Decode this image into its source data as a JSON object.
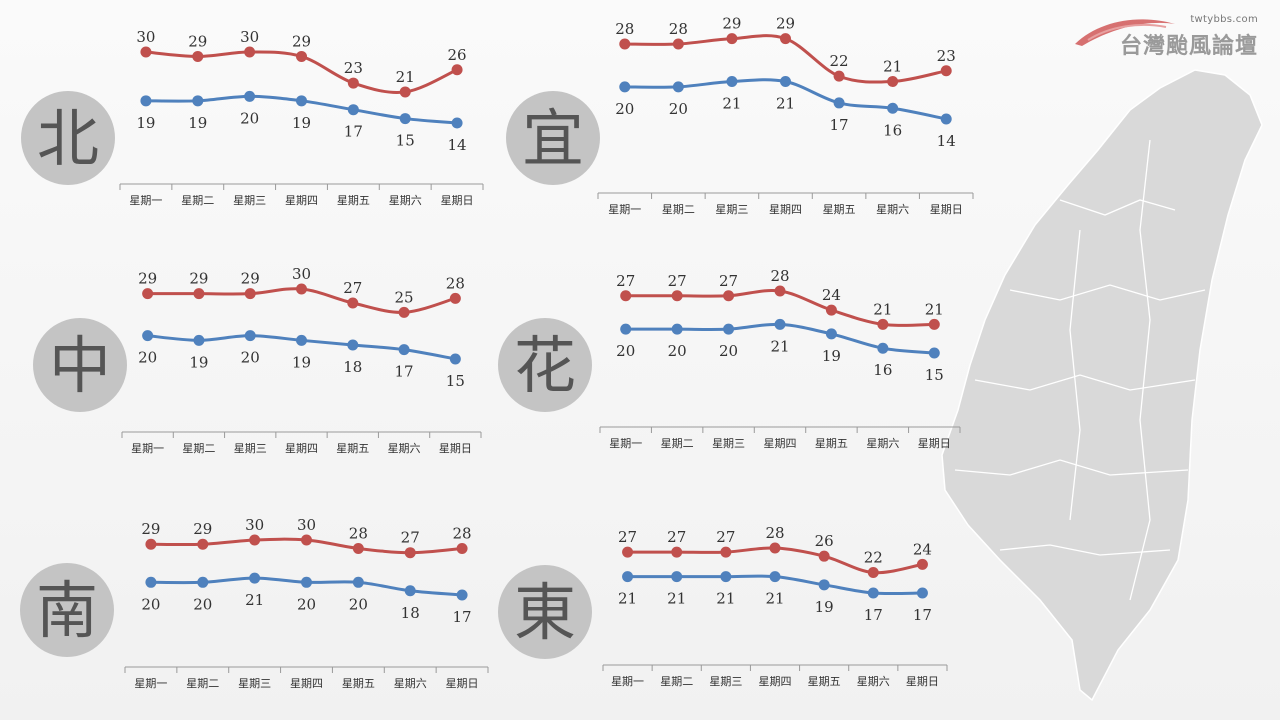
{
  "brand": {
    "url": "twtybbs.com",
    "name": "台灣颱風論壇"
  },
  "colors": {
    "high": "#c0504d",
    "low": "#4f81bd",
    "circle": "#c4c4c4",
    "region_text": "#555555",
    "axis": "#9a9a9a",
    "map": "#d9d9d9"
  },
  "chart_data": [
    {
      "type": "line",
      "region": "北",
      "categories": [
        "星期一",
        "星期二",
        "星期三",
        "星期四",
        "星期五",
        "星期六",
        "星期日"
      ],
      "series": [
        {
          "values": [
            30,
            29,
            30,
            29,
            23,
            21,
            26
          ]
        },
        {
          "values": [
            19,
            19,
            20,
            19,
            17,
            15,
            14
          ]
        }
      ]
    },
    {
      "type": "line",
      "region": "宜",
      "categories": [
        "星期一",
        "星期二",
        "星期三",
        "星期四",
        "星期五",
        "星期六",
        "星期日"
      ],
      "series": [
        {
          "values": [
            28,
            28,
            29,
            29,
            22,
            21,
            23
          ]
        },
        {
          "values": [
            20,
            20,
            21,
            21,
            17,
            16,
            14
          ]
        }
      ]
    },
    {
      "type": "line",
      "region": "中",
      "categories": [
        "星期一",
        "星期二",
        "星期三",
        "星期四",
        "星期五",
        "星期六",
        "星期日"
      ],
      "series": [
        {
          "values": [
            29,
            29,
            29,
            30,
            27,
            25,
            28
          ]
        },
        {
          "values": [
            20,
            19,
            20,
            19,
            18,
            17,
            15
          ]
        }
      ]
    },
    {
      "type": "line",
      "region": "花",
      "categories": [
        "星期一",
        "星期二",
        "星期三",
        "星期四",
        "星期五",
        "星期六",
        "星期日"
      ],
      "series": [
        {
          "values": [
            27,
            27,
            27,
            28,
            24,
            21,
            21
          ]
        },
        {
          "values": [
            20,
            20,
            20,
            21,
            19,
            16,
            15
          ]
        }
      ]
    },
    {
      "type": "line",
      "region": "南",
      "categories": [
        "星期一",
        "星期二",
        "星期三",
        "星期四",
        "星期五",
        "星期六",
        "星期日"
      ],
      "series": [
        {
          "values": [
            29,
            29,
            30,
            30,
            28,
            27,
            28
          ]
        },
        {
          "values": [
            20,
            20,
            21,
            20,
            20,
            18,
            17
          ]
        }
      ]
    },
    {
      "type": "line",
      "region": "東",
      "categories": [
        "星期一",
        "星期二",
        "星期三",
        "星期四",
        "星期五",
        "星期六",
        "星期日"
      ],
      "series": [
        {
          "values": [
            27,
            27,
            27,
            28,
            26,
            22,
            24
          ]
        },
        {
          "values": [
            21,
            21,
            21,
            21,
            19,
            17,
            17
          ]
        }
      ]
    }
  ]
}
